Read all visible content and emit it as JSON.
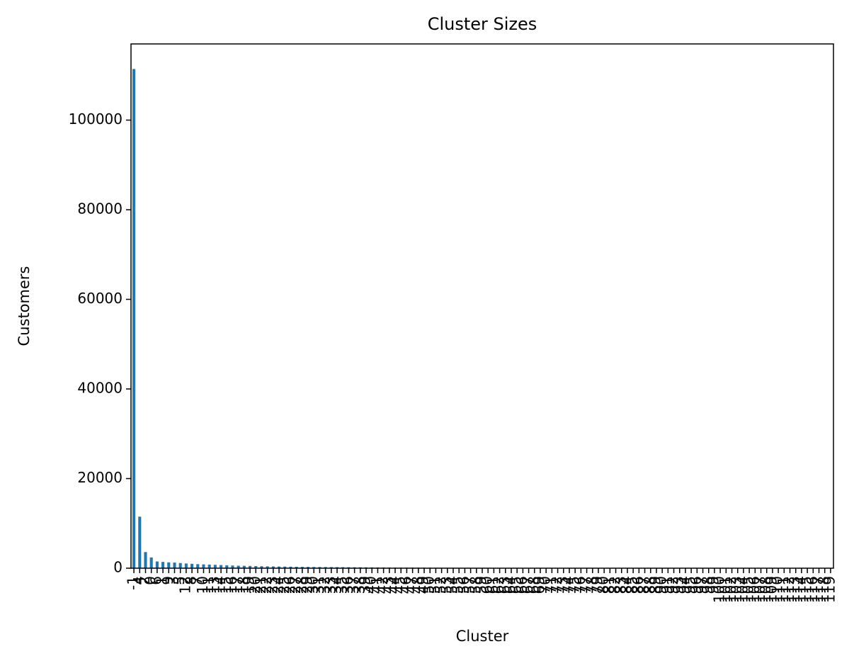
{
  "chart_data": {
    "type": "bar",
    "title": "Cluster Sizes",
    "x_label": "Cluster",
    "y_label": "Customers",
    "categories": [
      "-1",
      "4",
      "2",
      "0",
      "6",
      "1",
      "9",
      "3",
      "5",
      "12",
      "8",
      "7",
      "10",
      "11",
      "13",
      "14",
      "15",
      "16",
      "17",
      "18",
      "19",
      "20",
      "21",
      "22",
      "23",
      "24",
      "25",
      "26",
      "27",
      "28",
      "29",
      "30",
      "31",
      "32",
      "33",
      "34",
      "35",
      "36",
      "37",
      "38",
      "39",
      "40",
      "41",
      "42",
      "43",
      "44",
      "45",
      "46",
      "47",
      "48",
      "49",
      "50",
      "51",
      "52",
      "53",
      "54",
      "55",
      "56",
      "57",
      "58",
      "59",
      "60",
      "61",
      "62",
      "63",
      "64",
      "65",
      "66",
      "67",
      "68",
      "69",
      "70",
      "71",
      "72",
      "73",
      "74",
      "75",
      "76",
      "77",
      "78",
      "79",
      "80",
      "81",
      "82",
      "83",
      "84",
      "85",
      "86",
      "87",
      "88",
      "89",
      "90",
      "91",
      "92",
      "93",
      "94",
      "95",
      "96",
      "97",
      "98",
      "99",
      "100",
      "101",
      "102",
      "103",
      "104",
      "105",
      "106",
      "107",
      "108",
      "109",
      "110",
      "111",
      "112",
      "113",
      "114",
      "115",
      "116",
      "117",
      "118",
      "119"
    ],
    "values": [
      111400,
      11500,
      3600,
      2400,
      1500,
      1400,
      1300,
      1250,
      1150,
      1050,
      980,
      900,
      850,
      800,
      750,
      700,
      650,
      600,
      560,
      530,
      500,
      470,
      440,
      420,
      400,
      380,
      360,
      340,
      320,
      300,
      290,
      280,
      270,
      260,
      250,
      240,
      230,
      220,
      210,
      200,
      190,
      180,
      170,
      160,
      150,
      140,
      135,
      130,
      125,
      120,
      115,
      110,
      105,
      100,
      96,
      92,
      88,
      84,
      80,
      77,
      74,
      71,
      68,
      65,
      62,
      60,
      58,
      56,
      54,
      52,
      50,
      48,
      46,
      44,
      42,
      40,
      39,
      38,
      37,
      36,
      35,
      34,
      33,
      32,
      31,
      30,
      29,
      28,
      27,
      26,
      25,
      24,
      23,
      22,
      21,
      20,
      19,
      18,
      17,
      16,
      15,
      15,
      14,
      14,
      13,
      13,
      12,
      12,
      11,
      11,
      10,
      10,
      9,
      9,
      8,
      8,
      7,
      7,
      6,
      6,
      5
    ],
    "color": "#1f77b4",
    "ylim": [
      0,
      117000
    ],
    "yticks": [
      0,
      20000,
      40000,
      60000,
      80000,
      100000
    ],
    "grid": false
  }
}
